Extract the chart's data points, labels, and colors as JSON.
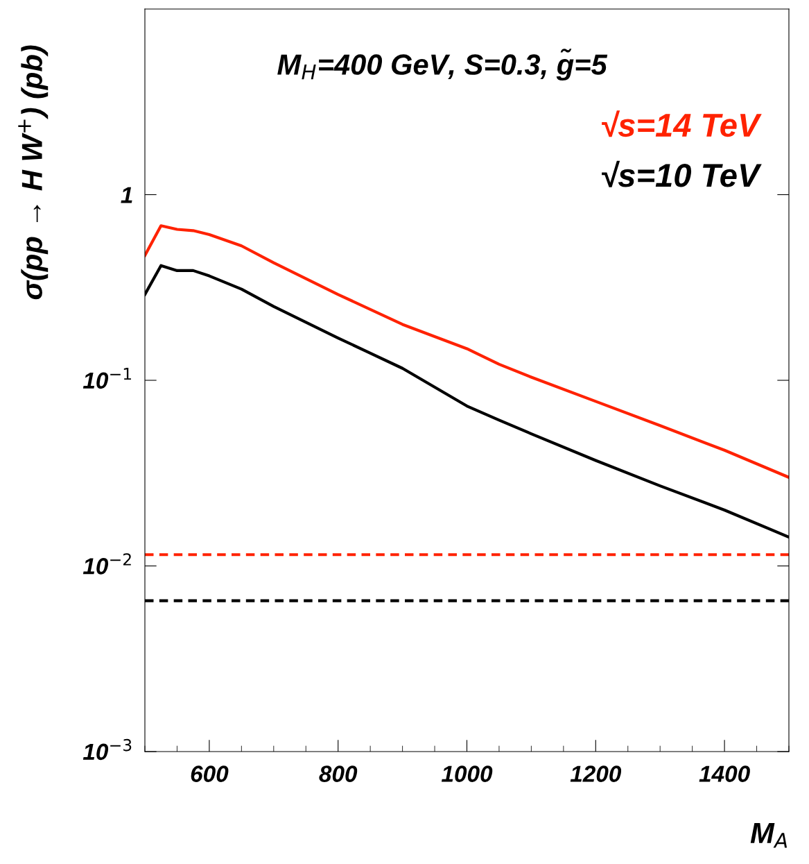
{
  "chart_data": {
    "type": "line",
    "xlabel": "M$_{A}$",
    "ylabel": "σ(pp → H W$^{+}$) (pb)",
    "annotations": [
      "M$_{H}$=400 GeV, S=0.3, g̃=5"
    ],
    "x": [
      500,
      525,
      550,
      575,
      600,
      650,
      700,
      800,
      900,
      1000,
      1050,
      1100,
      1200,
      1300,
      1400,
      1500
    ],
    "series": [
      {
        "name": "√s=14 TeV",
        "color": "#ff2200",
        "values": [
          0.47,
          0.68,
          0.65,
          0.64,
          0.61,
          0.53,
          0.43,
          0.29,
          0.2,
          0.148,
          0.122,
          0.104,
          0.077,
          0.057,
          0.042,
          0.03
        ]
      },
      {
        "name": "√s=10 TeV",
        "color": "#000000",
        "values": [
          0.29,
          0.415,
          0.39,
          0.39,
          0.365,
          0.31,
          0.25,
          0.169,
          0.116,
          0.0727,
          0.061,
          0.0515,
          0.037,
          0.027,
          0.02,
          0.0143
        ]
      }
    ],
    "ref_lines": [
      {
        "axis": "y",
        "value": 0.0115,
        "color": "#ff2200",
        "line_style": "dashed"
      },
      {
        "axis": "y",
        "value": 0.0065,
        "color": "#000000",
        "line_style": "dashed"
      }
    ],
    "log": "y",
    "xlim": [
      500,
      1500
    ],
    "xticks": [
      600,
      800,
      1000,
      1200,
      1400
    ],
    "ylim": [
      0.001,
      10
    ],
    "yticks": [
      {
        "value": 0.001,
        "label": "10$^{−3}$"
      },
      {
        "value": 0.01,
        "label": "10$^{−2}$"
      },
      {
        "value": 0.1,
        "label": "10$^{−1}$"
      },
      1
    ],
    "grid": false,
    "legend": "top right",
    "line_style": "solid",
    "marker": "none"
  }
}
